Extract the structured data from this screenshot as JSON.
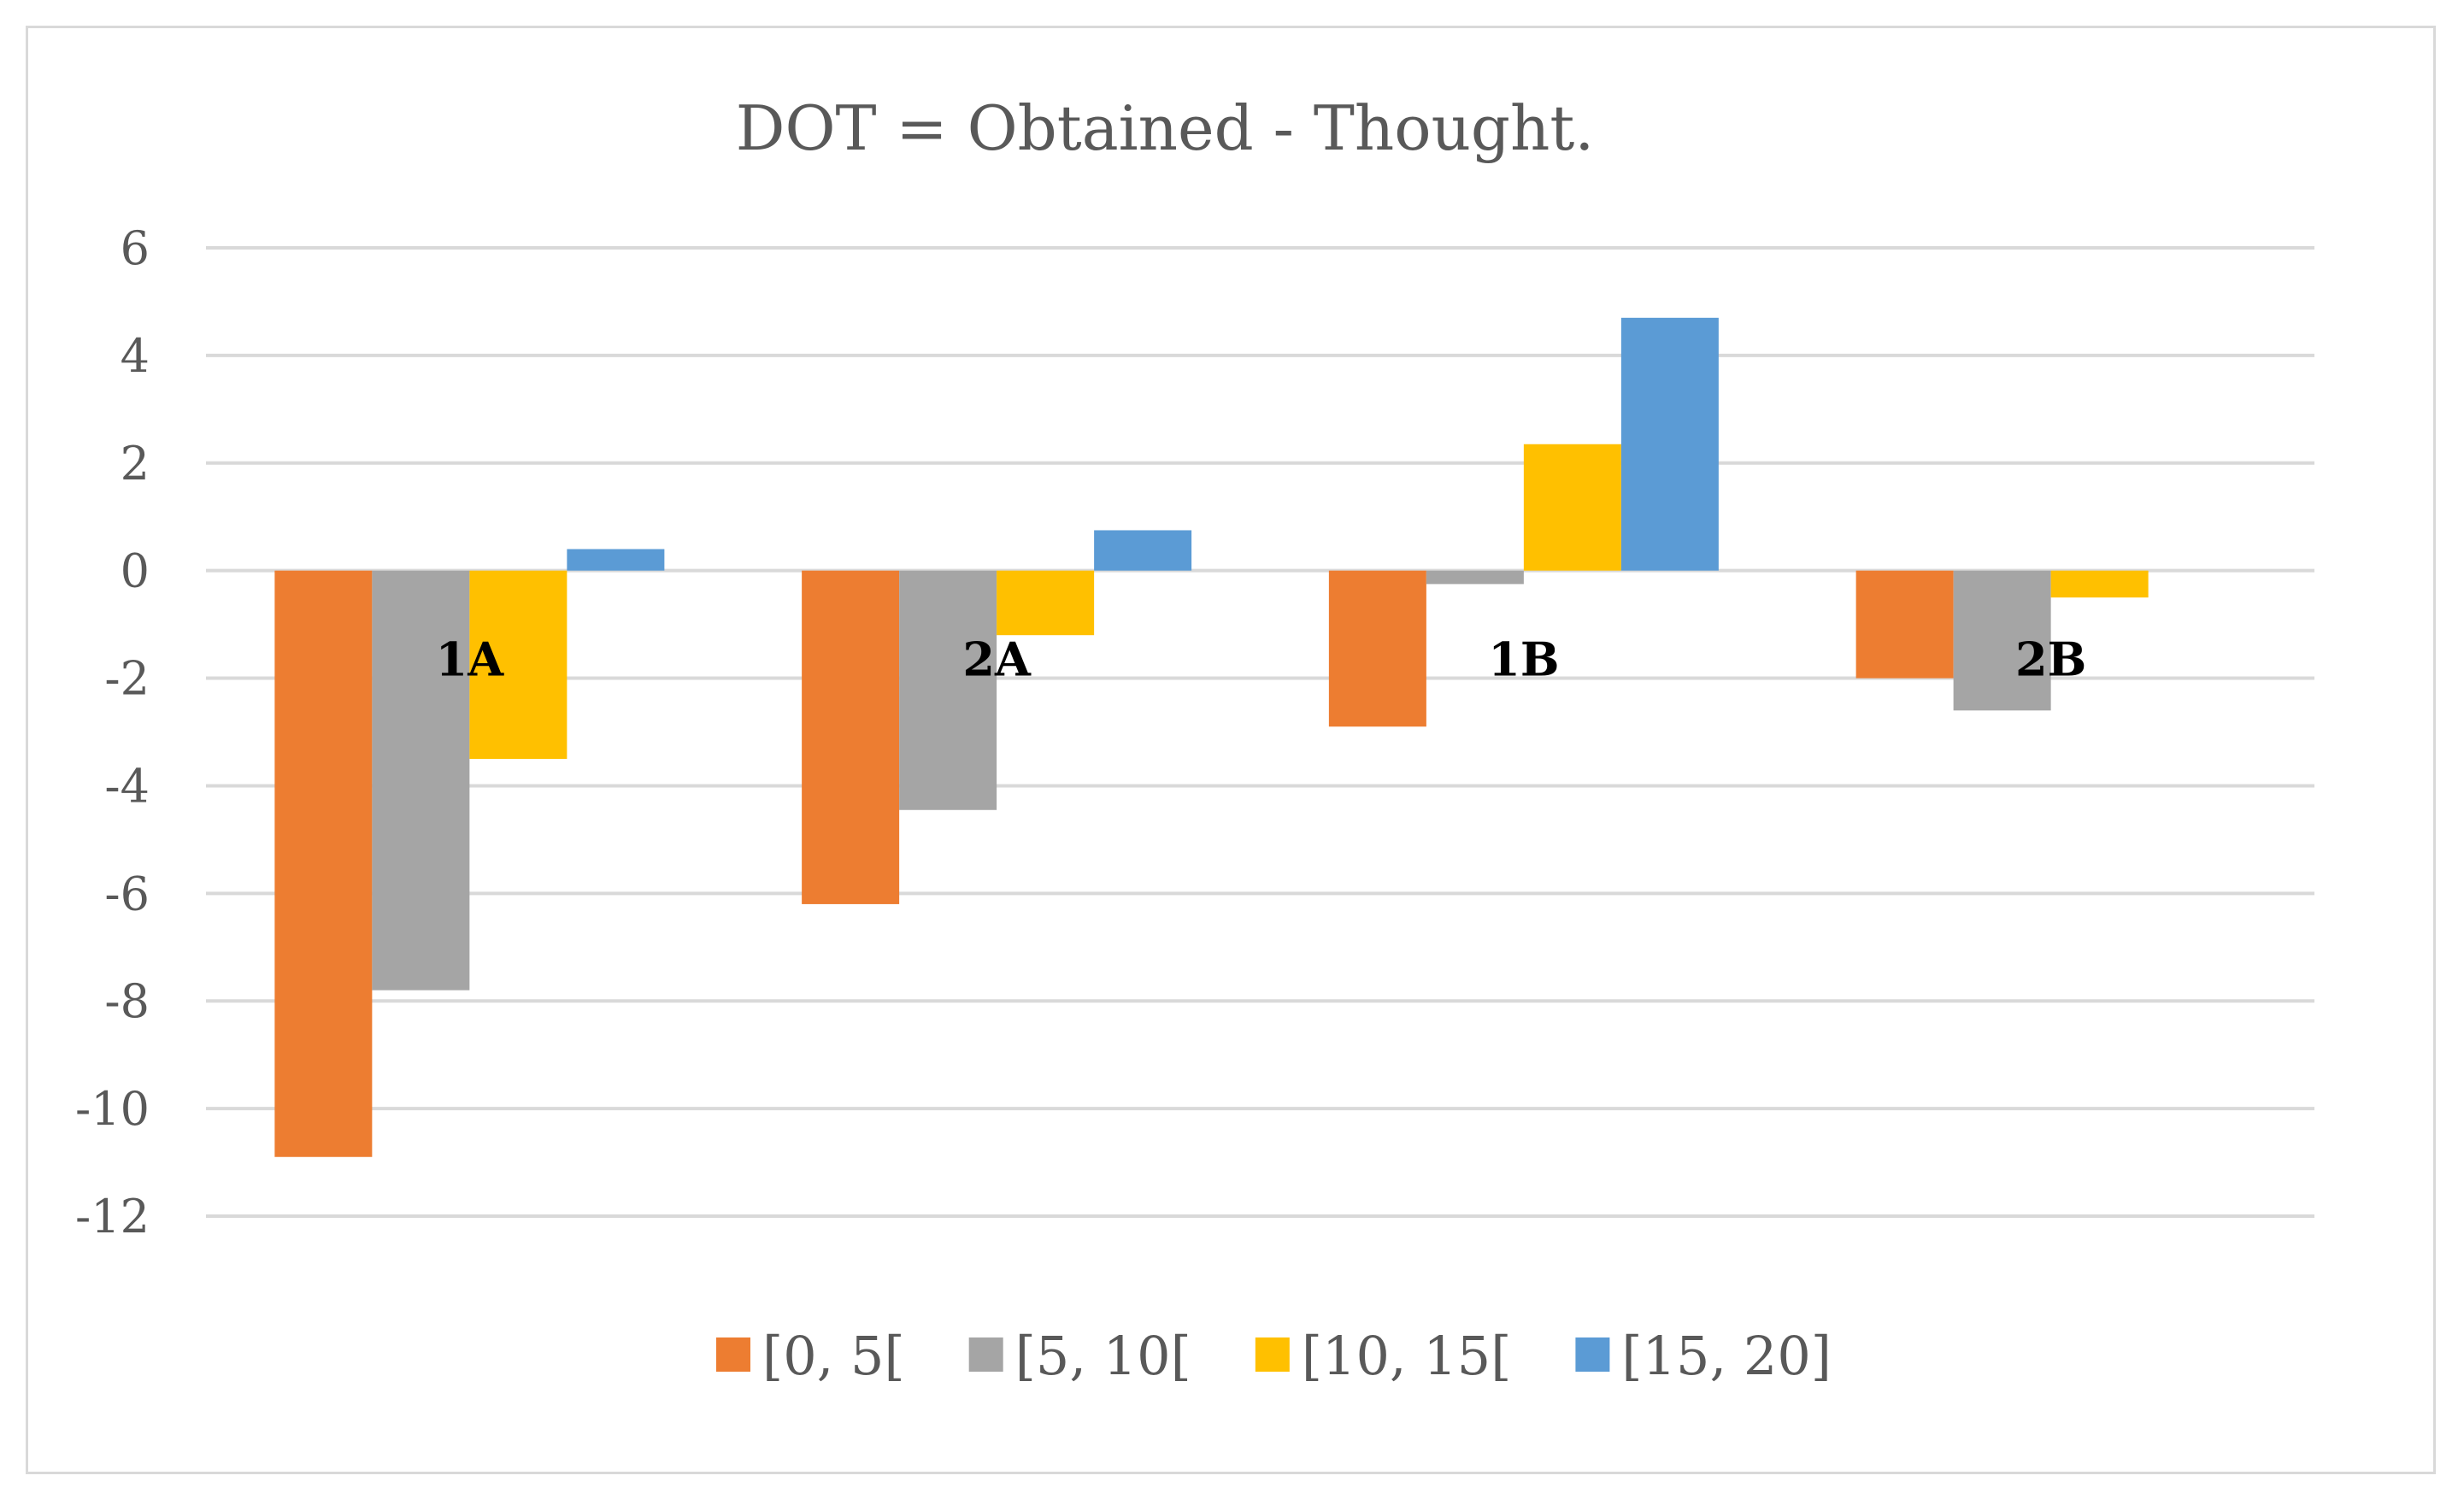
{
  "chart_data": {
    "type": "bar",
    "title": "DOT = Obtained - Thought.",
    "xlabel": "",
    "ylabel": "",
    "categories": [
      "1A",
      "2A",
      "1B",
      "2B"
    ],
    "series": [
      {
        "name": "[0, 5[",
        "color": "#ED7D31",
        "values": [
          -10.9,
          -6.2,
          -2.9,
          -2.0
        ]
      },
      {
        "name": "[5, 10[",
        "color": "#A5A5A5",
        "values": [
          -7.8,
          -4.45,
          -0.25,
          -2.6
        ]
      },
      {
        "name": "[10, 15[",
        "color": "#FFC000",
        "values": [
          -3.5,
          -1.2,
          2.35,
          -0.5
        ]
      },
      {
        "name": "[15, 20]",
        "color": "#5B9BD5",
        "values": [
          0.4,
          0.75,
          4.7,
          0
        ]
      }
    ],
    "ylim": [
      -12,
      6
    ],
    "yticks": [
      6,
      4,
      2,
      0,
      -2,
      -4,
      -6,
      -8,
      -10,
      -12
    ],
    "ytick_labels": [
      "6",
      "4",
      "2",
      "0",
      "-2",
      "-4",
      "-6",
      "-8",
      "-10",
      "-12"
    ],
    "grid": true,
    "legend_position": "bottom"
  }
}
